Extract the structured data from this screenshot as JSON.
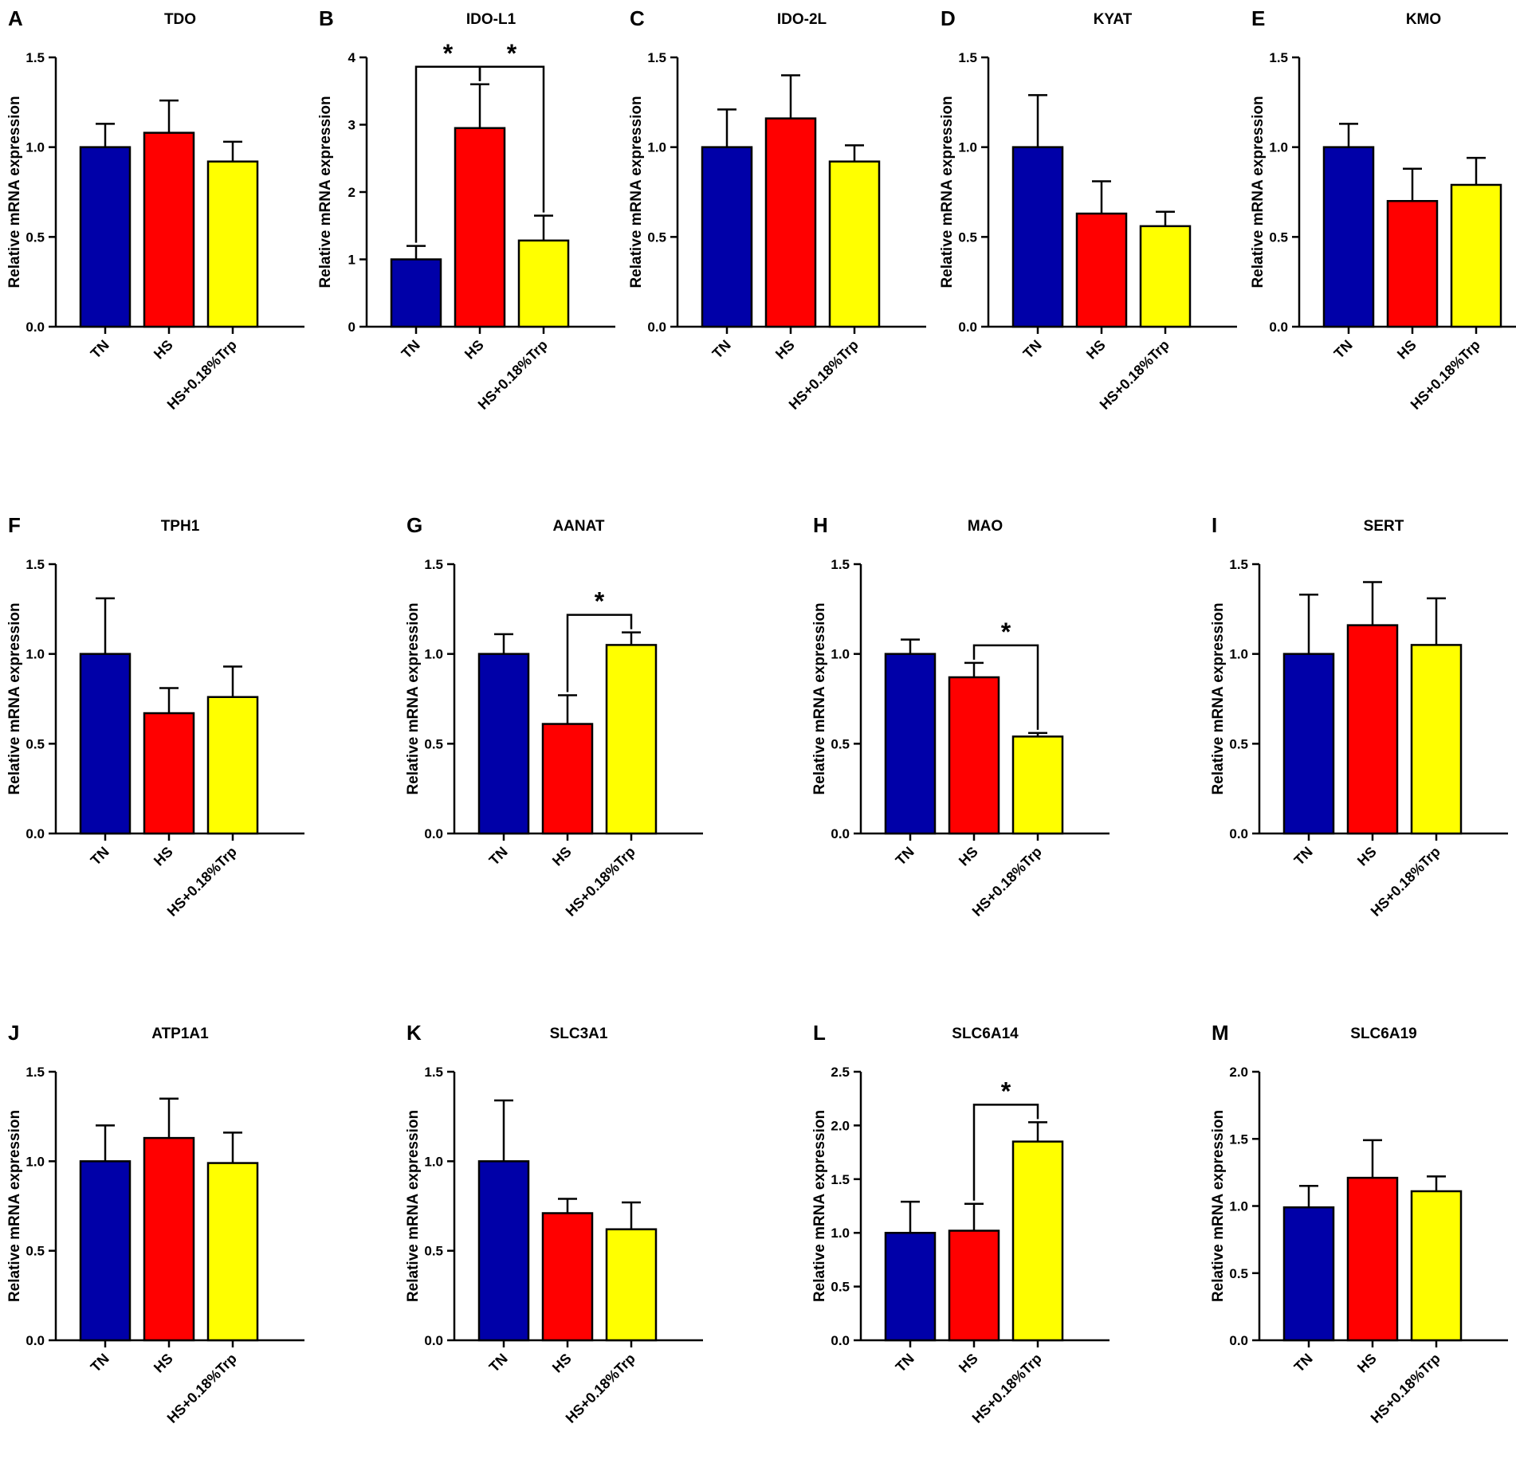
{
  "figure": {
    "group_colors": {
      "TN": "#0000A8",
      "HS": "#FF0000",
      "HS+0.18%Trp": "#FFFF00"
    },
    "significance_symbol": "*"
  },
  "chart_data": [
    {
      "panel": "A",
      "title": "TDO",
      "type": "bar",
      "ylabel": "Relative mRNA expression",
      "categories": [
        "TN",
        "HS",
        "HS+0.18%Trp"
      ],
      "ylim": [
        0,
        1.5
      ],
      "yticks": [
        "0.0",
        "0.5",
        "1.0",
        "1.5"
      ],
      "values": [
        1.0,
        1.08,
        0.92
      ],
      "errors": [
        0.13,
        0.18,
        0.11
      ],
      "significance": []
    },
    {
      "panel": "B",
      "title": "IDO-L1",
      "type": "bar",
      "ylabel": "Relative mRNA expression",
      "categories": [
        "TN",
        "HS",
        "HS+0.18%Trp"
      ],
      "ylim": [
        0,
        4
      ],
      "yticks": [
        "0",
        "1",
        "2",
        "3",
        "4"
      ],
      "values": [
        1.0,
        2.95,
        1.28
      ],
      "errors": [
        0.2,
        0.65,
        0.37
      ],
      "significance": [
        {
          "from": 0,
          "to": 1,
          "label": "*"
        },
        {
          "from": 1,
          "to": 2,
          "label": "*"
        }
      ]
    },
    {
      "panel": "C",
      "title": "IDO-2L",
      "type": "bar",
      "ylabel": "Relative mRNA expression",
      "categories": [
        "TN",
        "HS",
        "HS+0.18%Trp"
      ],
      "ylim": [
        0,
        1.5
      ],
      "yticks": [
        "0.0",
        "0.5",
        "1.0",
        "1.5"
      ],
      "values": [
        1.0,
        1.16,
        0.92
      ],
      "errors": [
        0.21,
        0.24,
        0.09
      ],
      "significance": []
    },
    {
      "panel": "D",
      "title": "KYAT",
      "type": "bar",
      "ylabel": "Relative mRNA expression",
      "categories": [
        "TN",
        "HS",
        "HS+0.18%Trp"
      ],
      "ylim": [
        0,
        1.5
      ],
      "yticks": [
        "0.0",
        "0.5",
        "1.0",
        "1.5"
      ],
      "values": [
        1.0,
        0.63,
        0.56
      ],
      "errors": [
        0.29,
        0.18,
        0.08
      ],
      "significance": []
    },
    {
      "panel": "E",
      "title": "KMO",
      "type": "bar",
      "ylabel": "Relative mRNA expression",
      "categories": [
        "TN",
        "HS",
        "HS+0.18%Trp"
      ],
      "ylim": [
        0,
        1.5
      ],
      "yticks": [
        "0.0",
        "0.5",
        "1.0",
        "1.5"
      ],
      "values": [
        1.0,
        0.7,
        0.79
      ],
      "errors": [
        0.13,
        0.18,
        0.15
      ],
      "significance": []
    },
    {
      "panel": "F",
      "title": "TPH1",
      "type": "bar",
      "ylabel": "Relative mRNA expression",
      "categories": [
        "TN",
        "HS",
        "HS+0.18%Trp"
      ],
      "ylim": [
        0,
        1.5
      ],
      "yticks": [
        "0.0",
        "0.5",
        "1.0",
        "1.5"
      ],
      "values": [
        1.0,
        0.67,
        0.76
      ],
      "errors": [
        0.31,
        0.14,
        0.17
      ],
      "significance": []
    },
    {
      "panel": "G",
      "title": "AANAT",
      "type": "bar",
      "ylabel": "Relative mRNA expression",
      "categories": [
        "TN",
        "HS",
        "HS+0.18%Trp"
      ],
      "ylim": [
        0,
        1.5
      ],
      "yticks": [
        "0.0",
        "0.5",
        "1.0",
        "1.5"
      ],
      "values": [
        1.0,
        0.61,
        1.05
      ],
      "errors": [
        0.11,
        0.16,
        0.07
      ],
      "significance": [
        {
          "from": 1,
          "to": 2,
          "label": "*"
        }
      ]
    },
    {
      "panel": "H",
      "title": "MAO",
      "type": "bar",
      "ylabel": "Relative mRNA expression",
      "categories": [
        "TN",
        "HS",
        "HS+0.18%Trp"
      ],
      "ylim": [
        0,
        1.5
      ],
      "yticks": [
        "0.0",
        "0.5",
        "1.0",
        "1.5"
      ],
      "values": [
        1.0,
        0.87,
        0.54
      ],
      "errors": [
        0.08,
        0.08,
        0.02
      ],
      "significance": [
        {
          "from": 1,
          "to": 2,
          "label": "*"
        }
      ]
    },
    {
      "panel": "I",
      "title": "SERT",
      "type": "bar",
      "ylabel": "Relative mRNA expression",
      "categories": [
        "TN",
        "HS",
        "HS+0.18%Trp"
      ],
      "ylim": [
        0,
        1.5
      ],
      "yticks": [
        "0.0",
        "0.5",
        "1.0",
        "1.5"
      ],
      "values": [
        1.0,
        1.16,
        1.05
      ],
      "errors": [
        0.33,
        0.24,
        0.26
      ],
      "significance": []
    },
    {
      "panel": "J",
      "title": "ATP1A1",
      "type": "bar",
      "ylabel": "Relative mRNA expression",
      "categories": [
        "TN",
        "HS",
        "HS+0.18%Trp"
      ],
      "ylim": [
        0,
        1.5
      ],
      "yticks": [
        "0.0",
        "0.5",
        "1.0",
        "1.5"
      ],
      "values": [
        1.0,
        1.13,
        0.99
      ],
      "errors": [
        0.2,
        0.22,
        0.17
      ],
      "significance": []
    },
    {
      "panel": "K",
      "title": "SLC3A1",
      "type": "bar",
      "ylabel": "Relative mRNA expression",
      "categories": [
        "TN",
        "HS",
        "HS+0.18%Trp"
      ],
      "ylim": [
        0,
        1.5
      ],
      "yticks": [
        "0.0",
        "0.5",
        "1.0",
        "1.5"
      ],
      "values": [
        1.0,
        0.71,
        0.62
      ],
      "errors": [
        0.34,
        0.08,
        0.15
      ],
      "significance": []
    },
    {
      "panel": "L",
      "title": "SLC6A14",
      "type": "bar",
      "ylabel": "Relative mRNA expression",
      "categories": [
        "TN",
        "HS",
        "HS+0.18%Trp"
      ],
      "ylim": [
        0,
        2.5
      ],
      "yticks": [
        "0.0",
        "0.5",
        "1.0",
        "1.5",
        "2.0",
        "2.5"
      ],
      "values": [
        1.0,
        1.02,
        1.85
      ],
      "errors": [
        0.29,
        0.25,
        0.18
      ],
      "significance": [
        {
          "from": 1,
          "to": 2,
          "label": "*"
        }
      ]
    },
    {
      "panel": "M",
      "title": "SLC6A19",
      "type": "bar",
      "ylabel": "Relative mRNA expression",
      "categories": [
        "TN",
        "HS",
        "HS+0.18%Trp"
      ],
      "ylim": [
        0,
        2.0
      ],
      "yticks": [
        "0.0",
        "0.5",
        "1.0",
        "1.5",
        "2.0"
      ],
      "values": [
        0.99,
        1.21,
        1.11
      ],
      "errors": [
        0.16,
        0.28,
        0.11
      ],
      "significance": []
    }
  ]
}
